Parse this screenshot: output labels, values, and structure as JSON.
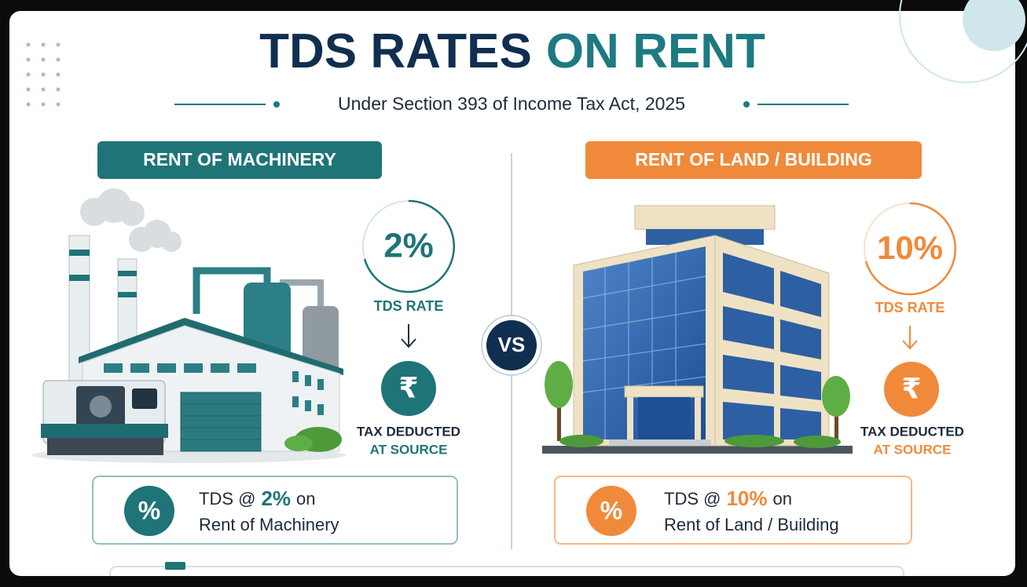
{
  "title": {
    "part1": "TDS RATES",
    "part2": "ON RENT"
  },
  "subtitle": "Under Section 393 of Income Tax Act, 2025",
  "vs": "VS",
  "icons": {
    "rupee": "₹",
    "percent": "%"
  },
  "panels": [
    {
      "heading": "RENT OF MACHINERY",
      "rate": "2%",
      "rate_label": "TDS RATE",
      "deduct_line1": "TAX DEDUCTED",
      "deduct_line2": "AT SOURCE",
      "summary_prefix": "TDS @",
      "summary_rate": "2%",
      "summary_suffix": "on",
      "summary_line2": "Rent of Machinery"
    },
    {
      "heading": "RENT OF LAND / BUILDING",
      "rate": "10%",
      "rate_label": "TDS RATE",
      "deduct_line1": "TAX DEDUCTED",
      "deduct_line2": "AT SOURCE",
      "summary_prefix": "TDS @",
      "summary_rate": "10%",
      "summary_suffix": "on",
      "summary_line2": "Rent of Land / Building"
    }
  ]
}
